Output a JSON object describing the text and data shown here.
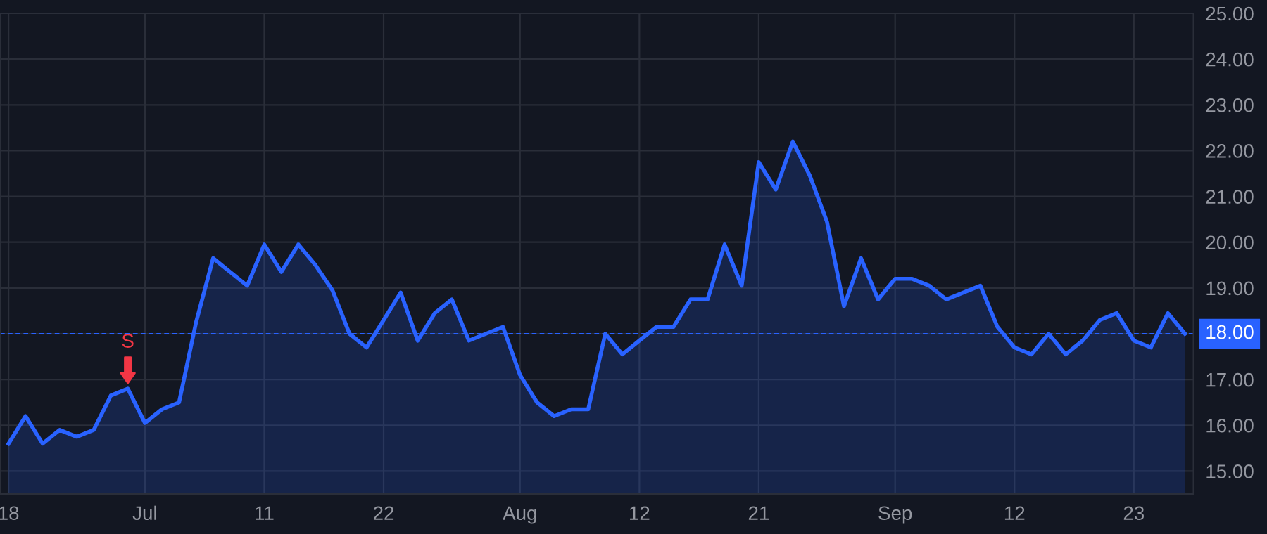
{
  "chart_data": {
    "type": "area",
    "categories": [
      "18",
      null,
      null,
      null,
      null,
      null,
      null,
      null,
      "Jul",
      null,
      null,
      null,
      null,
      null,
      null,
      "11",
      null,
      null,
      null,
      null,
      null,
      null,
      "22",
      null,
      null,
      null,
      null,
      null,
      null,
      null,
      "Aug",
      null,
      null,
      null,
      null,
      null,
      null,
      "12",
      null,
      null,
      null,
      null,
      null,
      null,
      "21",
      null,
      null,
      null,
      null,
      null,
      null,
      null,
      "Sep",
      null,
      null,
      null,
      null,
      null,
      null,
      "12",
      null,
      null,
      null,
      null,
      null,
      null,
      "23",
      null,
      null,
      null
    ],
    "series": [
      {
        "color": "#2962ff",
        "values": [
          15.6,
          16.2,
          15.6,
          15.9,
          15.75,
          15.9,
          16.65,
          16.8,
          16.05,
          16.35,
          16.5,
          18.25,
          19.65,
          19.35,
          19.05,
          19.95,
          19.35,
          19.95,
          19.5,
          18.95,
          18.0,
          17.7,
          18.3,
          18.9,
          17.85,
          18.45,
          18.75,
          17.85,
          18.0,
          18.15,
          17.1,
          16.5,
          16.2,
          16.35,
          16.35,
          18.0,
          17.55,
          17.85,
          18.15,
          18.15,
          18.75,
          18.75,
          19.95,
          19.05,
          21.75,
          21.15,
          22.2,
          21.45,
          20.45,
          18.6,
          19.65,
          18.75,
          19.2,
          19.2,
          19.05,
          18.75,
          18.9,
          19.05,
          18.15,
          17.7,
          17.55,
          18.0,
          17.55,
          17.85,
          18.3,
          18.45,
          17.85,
          17.7,
          18.45,
          18.0
        ]
      }
    ],
    "ylim": [
      14.5,
      25.0
    ],
    "yticks": [
      {
        "value": 15,
        "label": "15.00"
      },
      {
        "value": 16,
        "label": "16.00"
      },
      {
        "value": 17,
        "label": "17.00"
      },
      {
        "value": 18,
        "label": "18.00"
      },
      {
        "value": 19,
        "label": "19.00"
      },
      {
        "value": 20,
        "label": "20.00"
      },
      {
        "value": 21,
        "label": "21.00"
      },
      {
        "value": 22,
        "label": "22.00"
      },
      {
        "value": 23,
        "label": "23.00"
      },
      {
        "value": 24,
        "label": "24.00"
      },
      {
        "value": 25,
        "label": "25.00"
      }
    ],
    "ref_lines": [
      {
        "axis": "y",
        "value": 18.0,
        "label": "18.00",
        "color": "#2962ff",
        "line_style": "dashed"
      }
    ],
    "annotations": [
      {
        "text": "S",
        "y": 16.8
      }
    ],
    "grid": true,
    "legend": false
  }
}
